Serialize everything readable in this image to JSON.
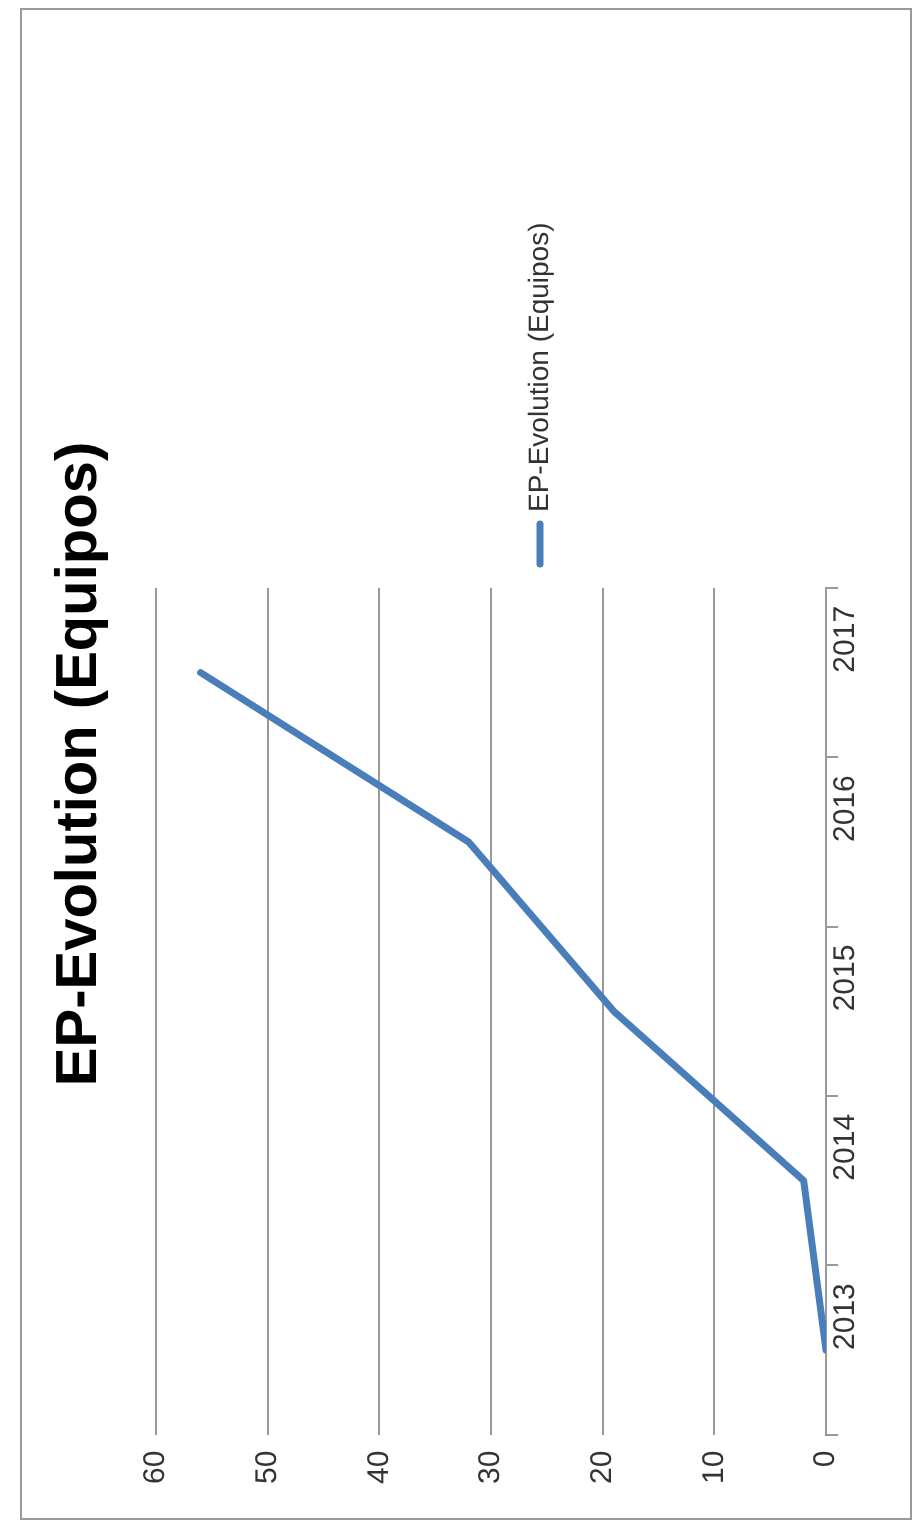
{
  "chart_data": {
    "type": "line",
    "title": "EP-Evolution (Equipos)",
    "orientation": "horizontal",
    "categories": [
      "2017",
      "2016",
      "2015",
      "2014",
      "2013"
    ],
    "series": [
      {
        "name": "EP-Evolution (Equipos)",
        "color": "#4a7ebb",
        "values": [
          56,
          32,
          19,
          2,
          0
        ]
      }
    ],
    "xlim": [
      60,
      0
    ],
    "xticks": [
      0,
      10,
      20,
      30,
      40,
      50,
      60
    ],
    "grid": "x",
    "legend": "top",
    "marker": "none",
    "line_style": "solid"
  }
}
